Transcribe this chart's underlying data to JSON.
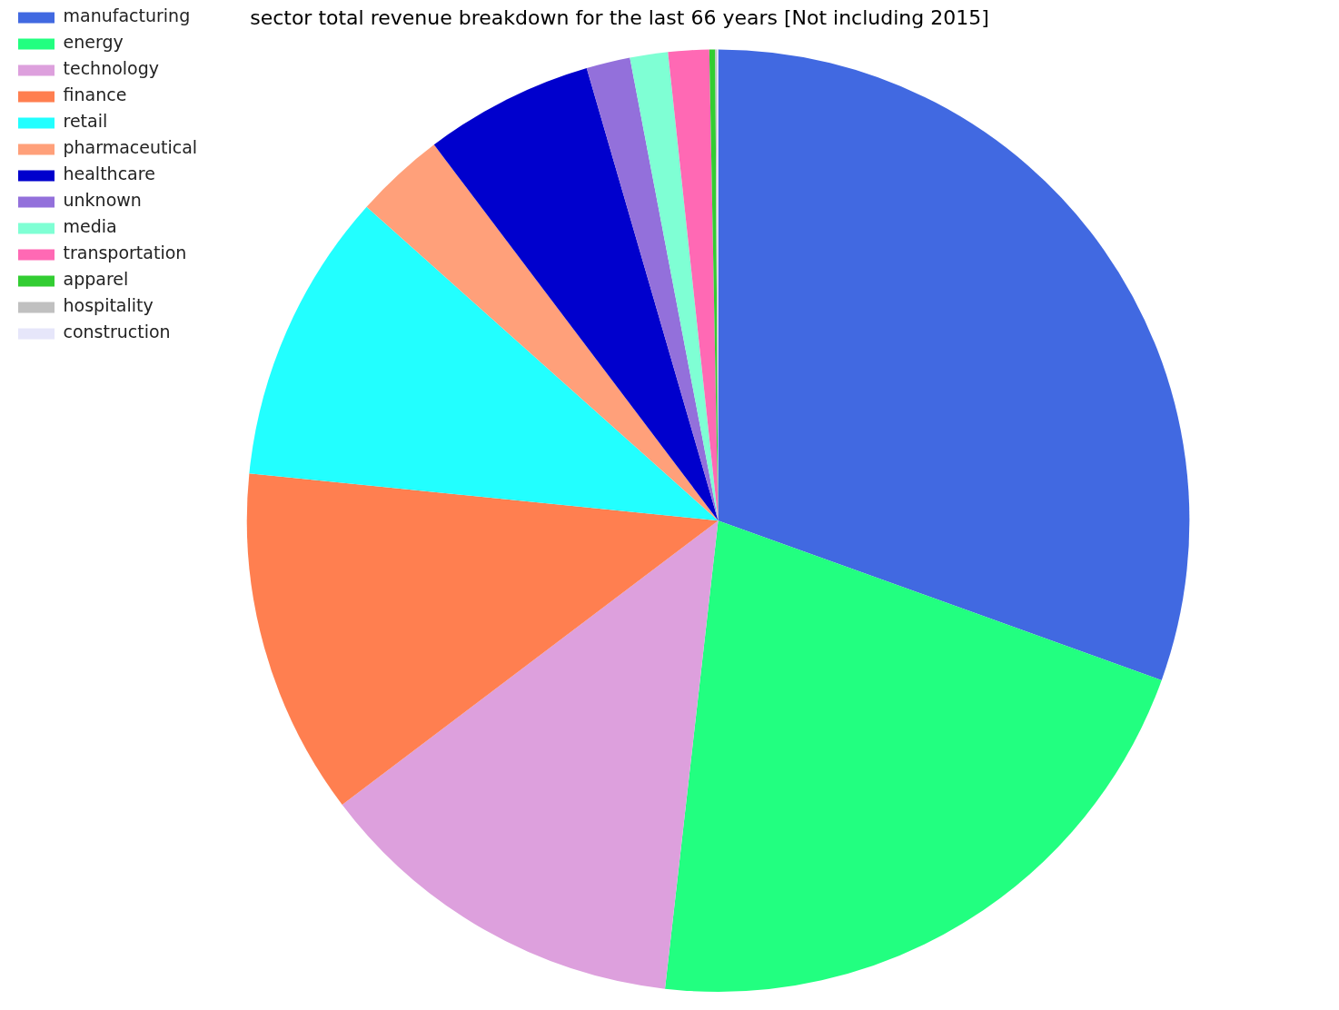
{
  "chart_data": {
    "type": "pie",
    "title": "sector total revenue breakdown for the last 66 years [Not including 2015]",
    "categories": [
      "manufacturing",
      "energy",
      "technology",
      "finance",
      "retail",
      "pharmaceutical",
      "healthcare",
      "unknown",
      "media",
      "transportation",
      "apparel",
      "hospitality",
      "construction"
    ],
    "values": [
      30.5,
      21.3,
      12.9,
      11.9,
      10.0,
      3.1,
      5.8,
      1.5,
      1.3,
      1.4,
      0.2,
      0.05,
      0.05
    ],
    "colors": [
      "#4169e1",
      "#22ff80",
      "#dda0dd",
      "#ff7f50",
      "#22ffff",
      "#ffa07a",
      "#0000cd",
      "#9370db",
      "#7fffd4",
      "#ff69b4",
      "#32cd32",
      "#c0c0c0",
      "#e6e6fa"
    ],
    "legend": "top left"
  }
}
